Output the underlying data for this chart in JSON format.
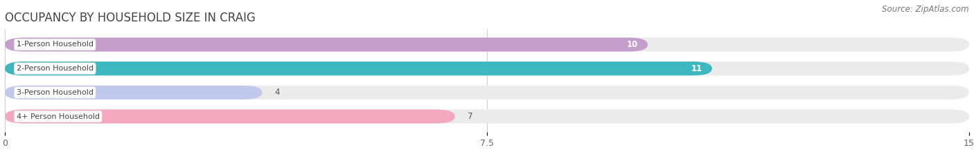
{
  "title": "OCCUPANCY BY HOUSEHOLD SIZE IN CRAIG",
  "source": "Source: ZipAtlas.com",
  "categories": [
    "1-Person Household",
    "2-Person Household",
    "3-Person Household",
    "4+ Person Household"
  ],
  "values": [
    10,
    11,
    4,
    7
  ],
  "bar_colors": [
    "#c49eca",
    "#3db8bf",
    "#c0c8ec",
    "#f4a8c0"
  ],
  "label_colors": [
    "white",
    "white",
    "#555555",
    "#555555"
  ],
  "xlim": [
    0,
    15
  ],
  "xticks": [
    0,
    7.5,
    15
  ],
  "background_color": "#ffffff",
  "bar_bg_color": "#ebebeb",
  "title_fontsize": 12,
  "source_fontsize": 8.5,
  "label_fontsize": 8,
  "value_fontsize": 8.5
}
